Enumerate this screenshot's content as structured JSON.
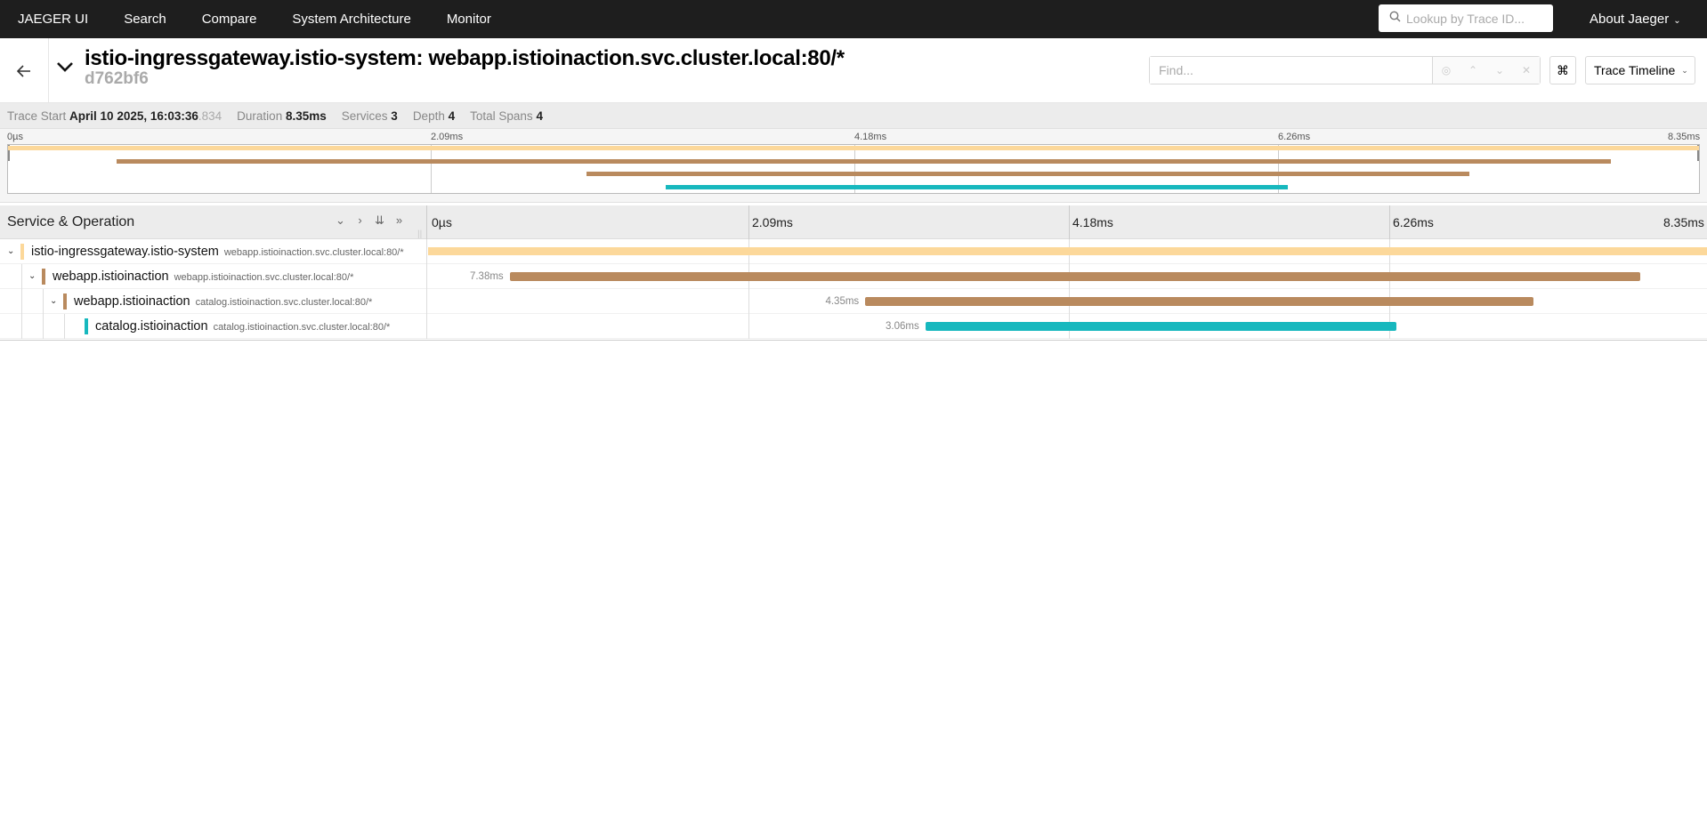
{
  "nav": {
    "brand": "JAEGER UI",
    "items": [
      "Search",
      "Compare",
      "System Architecture",
      "Monitor"
    ],
    "search_placeholder": "Lookup by Trace ID...",
    "about": "About Jaeger"
  },
  "trace": {
    "title": "istio-ingressgateway.istio-system: webapp.istioinaction.svc.cluster.local:80/*",
    "id": "d762bf6",
    "find_placeholder": "Find...",
    "view_label": "Trace Timeline"
  },
  "summary": {
    "trace_start_label": "Trace Start",
    "trace_start_value": "April 10 2025, 16:03:36",
    "trace_start_ms": ".834",
    "duration_label": "Duration",
    "duration_value": "8.35ms",
    "services_label": "Services",
    "services_value": "3",
    "depth_label": "Depth",
    "depth_value": "4",
    "total_spans_label": "Total Spans",
    "total_spans_value": "4"
  },
  "minimap": {
    "ticks": [
      "0µs",
      "2.09ms",
      "4.18ms",
      "6.26ms",
      "8.35ms"
    ]
  },
  "table": {
    "header_title": "Service & Operation",
    "ticks": [
      "0µs",
      "2.09ms",
      "4.18ms",
      "6.26ms",
      "8.35ms"
    ]
  },
  "colors": {
    "ingress": "#fcd89a",
    "webapp": "#b98a5e",
    "catalog": "#17b8be"
  },
  "spans": [
    {
      "service": "istio-ingressgateway.istio-system",
      "operation": "webapp.istioinaction.svc.cluster.local:80/*",
      "duration_label": "",
      "depth": 0,
      "color": "#fcd89a",
      "start_frac": 0.0,
      "end_frac": 1.0
    },
    {
      "service": "webapp.istioinaction",
      "operation": "webapp.istioinaction.svc.cluster.local:80/*",
      "duration_label": "7.38ms",
      "depth": 1,
      "color": "#b98a5e",
      "start_frac": 0.064,
      "end_frac": 0.948
    },
    {
      "service": "webapp.istioinaction",
      "operation": "catalog.istioinaction.svc.cluster.local:80/*",
      "duration_label": "4.35ms",
      "depth": 2,
      "color": "#b98a5e",
      "start_frac": 0.342,
      "end_frac": 0.864
    },
    {
      "service": "catalog.istioinaction",
      "operation": "catalog.istioinaction.svc.cluster.local:80/*",
      "duration_label": "3.06ms",
      "depth": 3,
      "color": "#17b8be",
      "start_frac": 0.389,
      "end_frac": 0.757
    }
  ]
}
